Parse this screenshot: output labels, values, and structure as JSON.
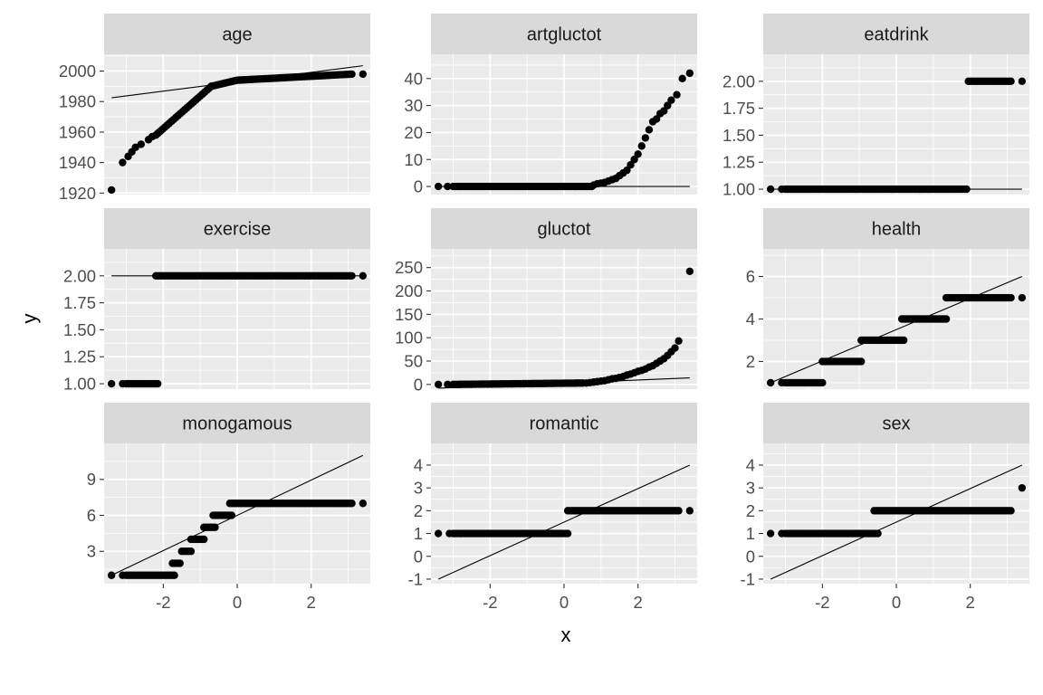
{
  "x_label": "x",
  "y_label": "y",
  "colors": {
    "panel_bg": "#EBEBEB",
    "strip_bg": "#D9D9D9",
    "grid": "#FFFFFF",
    "points": "#000000",
    "line": "#000000",
    "tick_text": "#4D4D4D"
  },
  "chart_data": [
    {
      "type": "scatter",
      "title": "age",
      "xlim": [
        -3.6,
        3.6
      ],
      "ylim": [
        1919,
        2011
      ],
      "x_ticks": [
        -2,
        0,
        2
      ],
      "x_tick_labels": [
        "-2",
        "0",
        "2"
      ],
      "y_ticks": [
        1920,
        1940,
        1960,
        1980,
        2000
      ],
      "y_tick_labels": [
        "1920",
        "1940",
        "1960",
        "1980",
        "2000"
      ],
      "reference_line": {
        "x": [
          -3.4,
          3.4
        ],
        "y": [
          1982.5,
          2003.5
        ]
      },
      "points": [
        [
          -3.4,
          1922
        ],
        [
          -3.1,
          1940
        ],
        [
          -2.95,
          1944
        ],
        [
          -2.85,
          1947
        ],
        [
          -2.75,
          1950
        ],
        [
          -2.6,
          1952
        ],
        [
          -2.4,
          1955
        ],
        [
          -2.3,
          1957
        ]
      ],
      "point_runs": [
        {
          "x0": -2.2,
          "x1": -0.7,
          "y0": 1958,
          "y1": 1990
        },
        {
          "x0": -0.7,
          "x1": 0.0,
          "y0": 1990,
          "y1": 1994
        },
        {
          "x0": 0.0,
          "x1": 3.1,
          "y0": 1994,
          "y1": 1998
        }
      ],
      "extra_points": [
        [
          3.4,
          1998
        ]
      ]
    },
    {
      "type": "scatter",
      "title": "artgluctot",
      "xlim": [
        -3.6,
        3.6
      ],
      "ylim": [
        -3,
        49
      ],
      "x_ticks": [
        -2,
        0,
        2
      ],
      "x_tick_labels": [
        "-2",
        "0",
        "2"
      ],
      "y_ticks": [
        0,
        10,
        20,
        30,
        40
      ],
      "y_tick_labels": [
        "0",
        "10",
        "20",
        "30",
        "40"
      ],
      "reference_line": {
        "x": [
          -3.4,
          3.4
        ],
        "y": [
          0,
          0
        ]
      },
      "points": [
        [
          -3.4,
          0
        ],
        [
          -3.15,
          0
        ]
      ],
      "point_runs": [
        {
          "x0": -3.0,
          "x1": 0.75,
          "y0": 0,
          "y1": 0
        }
      ],
      "extra_points": [
        [
          0.8,
          0.5
        ],
        [
          0.9,
          1
        ],
        [
          1.0,
          1.2
        ],
        [
          1.1,
          1.5
        ],
        [
          1.2,
          2
        ],
        [
          1.3,
          2.5
        ],
        [
          1.4,
          3
        ],
        [
          1.5,
          4
        ],
        [
          1.6,
          5
        ],
        [
          1.7,
          6
        ],
        [
          1.8,
          8
        ],
        [
          1.9,
          10
        ],
        [
          2.0,
          12
        ],
        [
          2.1,
          15
        ],
        [
          2.2,
          18
        ],
        [
          2.3,
          21
        ],
        [
          2.4,
          24
        ],
        [
          2.5,
          25
        ],
        [
          2.6,
          27
        ],
        [
          2.7,
          28
        ],
        [
          2.8,
          30
        ],
        [
          2.9,
          32
        ],
        [
          3.05,
          34
        ],
        [
          3.2,
          40
        ],
        [
          3.4,
          42
        ]
      ]
    },
    {
      "type": "scatter",
      "title": "eatdrink",
      "xlim": [
        -3.6,
        3.6
      ],
      "ylim": [
        0.95,
        2.25
      ],
      "x_ticks": [
        -2,
        0,
        2
      ],
      "x_tick_labels": [
        "-2",
        "0",
        "2"
      ],
      "y_ticks": [
        1.0,
        1.25,
        1.5,
        1.75,
        2.0
      ],
      "y_tick_labels": [
        "1.00",
        "1.25",
        "1.50",
        "1.75",
        "2.00"
      ],
      "reference_line": {
        "x": [
          -3.4,
          3.4
        ],
        "y": [
          1.0,
          1.0
        ]
      },
      "points": [
        [
          -3.4,
          1
        ],
        [
          -3.1,
          1
        ]
      ],
      "point_runs": [
        {
          "x0": -3.0,
          "x1": 1.9,
          "y0": 1,
          "y1": 1
        },
        {
          "x0": 1.95,
          "x1": 3.1,
          "y0": 2,
          "y1": 2
        }
      ],
      "extra_points": [
        [
          3.4,
          2
        ]
      ]
    },
    {
      "type": "scatter",
      "title": "exercise",
      "xlim": [
        -3.6,
        3.6
      ],
      "ylim": [
        0.95,
        2.25
      ],
      "x_ticks": [
        -2,
        0,
        2
      ],
      "x_tick_labels": [
        "-2",
        "0",
        "2"
      ],
      "y_ticks": [
        1.0,
        1.25,
        1.5,
        1.75,
        2.0
      ],
      "y_tick_labels": [
        "1.00",
        "1.25",
        "1.50",
        "1.75",
        "2.00"
      ],
      "reference_line": {
        "x": [
          -3.4,
          3.4
        ],
        "y": [
          2.0,
          2.0
        ]
      },
      "points": [
        [
          -3.4,
          1
        ],
        [
          -3.1,
          1
        ]
      ],
      "point_runs": [
        {
          "x0": -3.0,
          "x1": -2.15,
          "y0": 1,
          "y1": 1
        },
        {
          "x0": -2.2,
          "x1": 3.1,
          "y0": 2,
          "y1": 2
        }
      ],
      "extra_points": [
        [
          3.4,
          2
        ]
      ]
    },
    {
      "type": "scatter",
      "title": "gluctot",
      "xlim": [
        -3.6,
        3.6
      ],
      "ylim": [
        -10,
        290
      ],
      "x_ticks": [
        -2,
        0,
        2
      ],
      "x_tick_labels": [
        "-2",
        "0",
        "2"
      ],
      "y_ticks": [
        0,
        50,
        100,
        150,
        200,
        250
      ],
      "y_tick_labels": [
        "0",
        "50",
        "100",
        "150",
        "200",
        "250"
      ],
      "reference_line": {
        "x": [
          -3.4,
          3.4
        ],
        "y": [
          -8,
          14
        ]
      },
      "points": [
        [
          -3.4,
          0
        ],
        [
          -3.15,
          0
        ]
      ],
      "point_runs": [
        {
          "x0": -3.0,
          "x1": 0.5,
          "y0": 0,
          "y1": 3
        }
      ],
      "extra_points": [
        [
          0.6,
          3
        ],
        [
          0.7,
          4
        ],
        [
          0.8,
          5
        ],
        [
          0.9,
          6
        ],
        [
          1.0,
          7
        ],
        [
          1.1,
          8
        ],
        [
          1.2,
          10
        ],
        [
          1.3,
          12
        ],
        [
          1.4,
          13
        ],
        [
          1.5,
          15
        ],
        [
          1.6,
          17
        ],
        [
          1.7,
          20
        ],
        [
          1.8,
          22
        ],
        [
          1.9,
          25
        ],
        [
          2.0,
          28
        ],
        [
          2.1,
          30
        ],
        [
          2.2,
          33
        ],
        [
          2.3,
          37
        ],
        [
          2.4,
          40
        ],
        [
          2.5,
          45
        ],
        [
          2.6,
          50
        ],
        [
          2.7,
          55
        ],
        [
          2.8,
          62
        ],
        [
          2.9,
          70
        ],
        [
          3.0,
          78
        ],
        [
          3.1,
          93
        ],
        [
          3.4,
          242
        ]
      ]
    },
    {
      "type": "scatter",
      "title": "health",
      "xlim": [
        -3.6,
        3.6
      ],
      "ylim": [
        0.7,
        7.3
      ],
      "x_ticks": [
        -2,
        0,
        2
      ],
      "x_tick_labels": [
        "-2",
        "0",
        "2"
      ],
      "y_ticks": [
        2,
        4,
        6
      ],
      "y_tick_labels": [
        "2",
        "4",
        "6"
      ],
      "reference_line": {
        "x": [
          -3.4,
          3.4
        ],
        "y": [
          1.0,
          6.0
        ]
      },
      "points": [
        [
          -3.4,
          1
        ],
        [
          -3.1,
          1
        ]
      ],
      "point_runs": [
        {
          "x0": -3.0,
          "x1": -2.0,
          "y0": 1,
          "y1": 1
        },
        {
          "x0": -2.0,
          "x1": -0.95,
          "y0": 2,
          "y1": 2
        },
        {
          "x0": -0.95,
          "x1": 0.2,
          "y0": 3,
          "y1": 3
        },
        {
          "x0": 0.15,
          "x1": 1.35,
          "y0": 4,
          "y1": 4
        },
        {
          "x0": 1.35,
          "x1": 3.1,
          "y0": 5,
          "y1": 5
        }
      ],
      "extra_points": [
        [
          3.4,
          5
        ]
      ]
    },
    {
      "type": "scatter",
      "title": "monogamous",
      "xlim": [
        -3.6,
        3.6
      ],
      "ylim": [
        0.3,
        12.0
      ],
      "x_ticks": [
        -2,
        0,
        2
      ],
      "x_tick_labels": [
        "-2",
        "0",
        "2"
      ],
      "y_ticks": [
        3,
        6,
        9
      ],
      "y_tick_labels": [
        "3",
        "6",
        "9"
      ],
      "reference_line": {
        "x": [
          -3.4,
          3.4
        ],
        "y": [
          1.0,
          11.0
        ]
      },
      "points": [
        [
          -3.4,
          1
        ],
        [
          -3.1,
          1
        ]
      ],
      "point_runs": [
        {
          "x0": -3.0,
          "x1": -1.7,
          "y0": 1,
          "y1": 1
        },
        {
          "x0": -1.75,
          "x1": -1.55,
          "y0": 2,
          "y1": 2
        },
        {
          "x0": -1.5,
          "x1": -1.25,
          "y0": 3,
          "y1": 3
        },
        {
          "x0": -1.25,
          "x1": -0.9,
          "y0": 4,
          "y1": 4
        },
        {
          "x0": -0.9,
          "x1": -0.6,
          "y0": 5,
          "y1": 5
        },
        {
          "x0": -0.65,
          "x1": -0.15,
          "y0": 6,
          "y1": 6
        },
        {
          "x0": -0.2,
          "x1": 3.1,
          "y0": 7,
          "y1": 7
        }
      ],
      "extra_points": [
        [
          3.4,
          7
        ]
      ]
    },
    {
      "type": "scatter",
      "title": "romantic",
      "xlim": [
        -3.6,
        3.6
      ],
      "ylim": [
        -1.2,
        4.95
      ],
      "x_ticks": [
        -2,
        0,
        2
      ],
      "x_tick_labels": [
        "-2",
        "0",
        "2"
      ],
      "y_ticks": [
        -1,
        0,
        1,
        2,
        3,
        4
      ],
      "y_tick_labels": [
        "-1",
        "0",
        "1",
        "2",
        "3",
        "4"
      ],
      "reference_line": {
        "x": [
          -3.4,
          3.4
        ],
        "y": [
          -1.0,
          4.0
        ]
      },
      "points": [
        [
          -3.4,
          1
        ],
        [
          -3.1,
          1
        ]
      ],
      "point_runs": [
        {
          "x0": -3.0,
          "x1": 0.1,
          "y0": 1,
          "y1": 1
        },
        {
          "x0": 0.1,
          "x1": 3.1,
          "y0": 2,
          "y1": 2
        }
      ],
      "extra_points": [
        [
          3.4,
          2
        ]
      ]
    },
    {
      "type": "scatter",
      "title": "sex",
      "xlim": [
        -3.6,
        3.6
      ],
      "ylim": [
        -1.2,
        4.95
      ],
      "x_ticks": [
        -2,
        0,
        2
      ],
      "x_tick_labels": [
        "-2",
        "0",
        "2"
      ],
      "y_ticks": [
        -1,
        0,
        1,
        2,
        3,
        4
      ],
      "y_tick_labels": [
        "-1",
        "0",
        "1",
        "2",
        "3",
        "4"
      ],
      "reference_line": {
        "x": [
          -3.4,
          3.4
        ],
        "y": [
          -1.0,
          4.0
        ]
      },
      "points": [
        [
          -3.4,
          1
        ],
        [
          -3.1,
          1
        ]
      ],
      "point_runs": [
        {
          "x0": -3.0,
          "x1": -0.5,
          "y0": 1,
          "y1": 1
        },
        {
          "x0": -0.6,
          "x1": 3.1,
          "y0": 2,
          "y1": 2
        }
      ],
      "extra_points": [
        [
          3.4,
          3
        ]
      ]
    }
  ]
}
